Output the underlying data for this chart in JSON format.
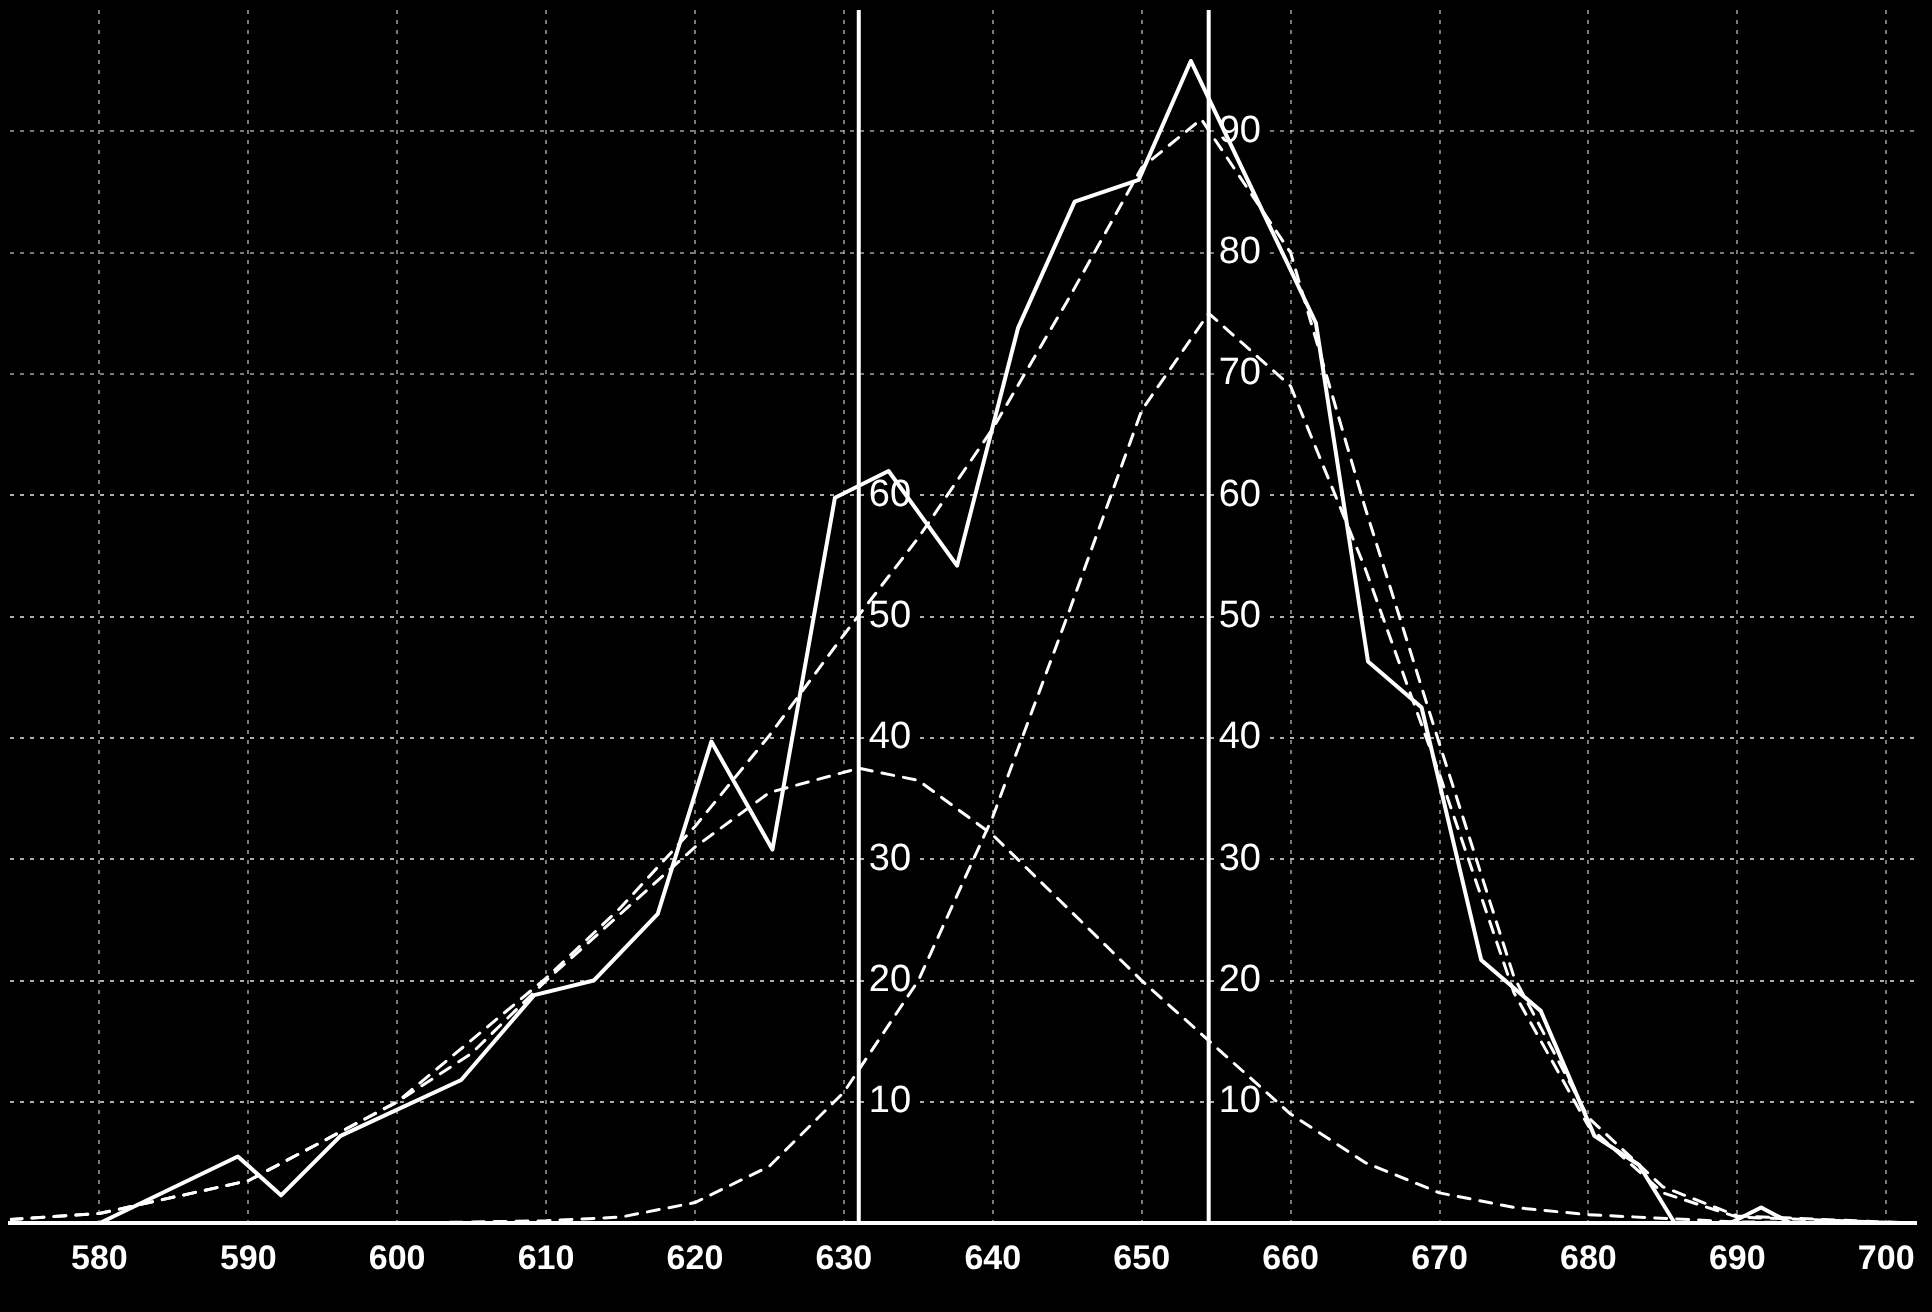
{
  "chart_data": {
    "type": "line",
    "xlim": [
      574,
      702
    ],
    "xticks": [
      580,
      590,
      600,
      610,
      620,
      630,
      640,
      650,
      660,
      670,
      680,
      690,
      700
    ],
    "ylim": [
      0,
      100
    ],
    "yticks": [
      10,
      20,
      30,
      40,
      50,
      60
    ],
    "y2lim": [
      0,
      100
    ],
    "y2ticks": [
      10,
      20,
      30,
      40,
      50,
      60,
      70,
      80,
      90
    ],
    "grid": true,
    "legend": false,
    "marker": "none",
    "ref_lines": [
      {
        "axis": "x",
        "value": 631,
        "color": "#ffffff"
      },
      {
        "axis": "x",
        "value": 654.5,
        "color": "#ffffff"
      }
    ],
    "series": [
      {
        "color": "#ffffff",
        "line_style": "solid",
        "x": [
          574,
          580,
          589.3,
          592.2,
          596.2,
          604.3,
          609.2,
          613.2,
          617.5,
          621.1,
          625.2,
          629.4,
          633,
          637.6,
          641.7,
          645.5,
          649.8,
          653.3,
          661.7,
          665.2,
          668.8,
          672.8,
          676.8,
          680.4,
          683.4,
          685.8,
          689.5,
          691.6,
          693.6,
          702
        ],
        "values": [
          0,
          0,
          5.5,
          2.3,
          7.2,
          11.8,
          18.8,
          20,
          25.5,
          39.7,
          30.8,
          59.8,
          62,
          54.2,
          73.8,
          84.2,
          86,
          95.8,
          74.2,
          46.3,
          42.5,
          21.7,
          17.5,
          7.2,
          4.8,
          0,
          0,
          1.3,
          0,
          0
        ]
      },
      {
        "color": "#ffffff",
        "line_style": "dashed",
        "x": [
          574,
          580,
          590,
          600,
          610,
          615,
          620,
          625,
          630,
          635,
          640,
          645,
          650,
          654,
          660,
          665,
          670,
          675,
          680,
          685,
          690,
          702
        ],
        "values": [
          0.3,
          0.8,
          3.5,
          10,
          20.2,
          26,
          32.7,
          40.2,
          48.5,
          56.5,
          65.5,
          76,
          87,
          91,
          80,
          59,
          39.5,
          20.3,
          8.7,
          3,
          0.6,
          0
        ]
      },
      {
        "color": "#ffffff",
        "line_style": "dashed",
        "x": [
          574,
          580,
          590,
          600,
          605,
          610,
          615,
          620,
          625,
          631,
          635,
          640,
          645,
          650,
          655,
          660,
          665,
          670,
          675,
          680,
          690,
          702
        ],
        "values": [
          0.3,
          0.8,
          3.5,
          10,
          14,
          20,
          25.5,
          31,
          35.5,
          37.5,
          36.5,
          32,
          26,
          20,
          14.5,
          9,
          5,
          2.5,
          1.3,
          0.7,
          0.1,
          0
        ]
      },
      {
        "color": "#ffffff",
        "line_style": "dashed",
        "x": [
          574,
          600,
          610,
          615,
          620,
          625,
          630,
          635,
          640,
          645,
          650,
          654.5,
          660,
          665,
          670,
          675,
          680,
          685,
          690,
          702
        ],
        "values": [
          0,
          0,
          0.2,
          0.5,
          1.7,
          4.7,
          10.8,
          20,
          33.5,
          50,
          67,
          75,
          69,
          54,
          37,
          19,
          8,
          2.5,
          0.5,
          0
        ]
      }
    ]
  }
}
